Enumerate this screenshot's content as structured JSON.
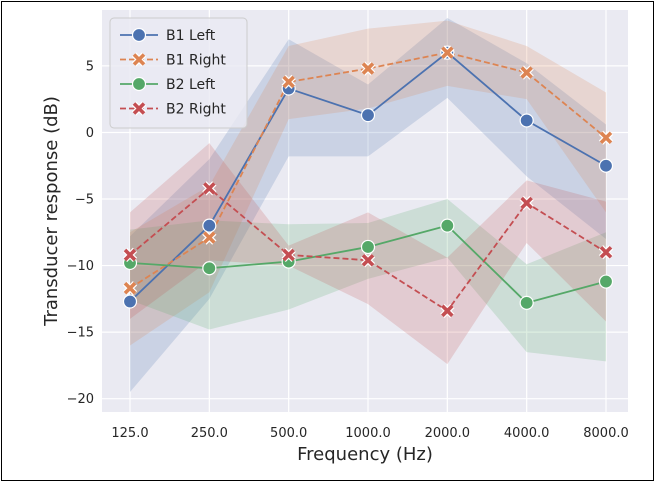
{
  "chart_data": {
    "type": "line",
    "xlabel": "Frequency (Hz)",
    "ylabel": "Transducer response (dB)",
    "categories": [
      "125.0",
      "250.0",
      "500.0",
      "1000.0",
      "2000.0",
      "4000.0",
      "8000.0"
    ],
    "ylim": [
      -21,
      9.2
    ],
    "yticks": [
      5,
      0,
      -5,
      -10,
      -15,
      -20
    ],
    "ytick_labels": [
      "5",
      "0",
      "−5",
      "−10",
      "−15",
      "−20"
    ],
    "grid": true,
    "legend_position": "top-left",
    "series": [
      {
        "name": "B1 Left",
        "color": "#4c72b0",
        "marker": "circle",
        "linestyle": "solid",
        "values": [
          -12.7,
          -7.0,
          3.3,
          1.3,
          6.0,
          0.9,
          -2.5
        ],
        "ci_low": [
          -19.5,
          -12.5,
          -1.8,
          -1.8,
          2.6,
          -3.3,
          -8.0
        ],
        "ci_high": [
          -7.8,
          -2.0,
          7.0,
          3.6,
          8.6,
          5.2,
          0.6
        ]
      },
      {
        "name": "B1 Right",
        "color": "#dd8452",
        "marker": "x",
        "linestyle": "dashed",
        "values": [
          -11.7,
          -7.9,
          3.8,
          4.8,
          6.0,
          4.5,
          -0.4
        ],
        "ci_low": [
          -16.0,
          -12.0,
          1.0,
          1.8,
          3.5,
          2.5,
          -6.0
        ],
        "ci_high": [
          -7.5,
          -4.0,
          6.5,
          7.8,
          8.4,
          6.5,
          3.0
        ]
      },
      {
        "name": "B2 Left",
        "color": "#55a868",
        "marker": "circle",
        "linestyle": "solid",
        "values": [
          -9.8,
          -10.2,
          -9.7,
          -8.6,
          -7.0,
          -12.8,
          -11.2
        ],
        "ci_low": [
          -12.6,
          -14.8,
          -13.3,
          -11.0,
          -9.4,
          -16.5,
          -17.2
        ],
        "ci_high": [
          -7.3,
          -6.6,
          -6.9,
          -6.8,
          -5.0,
          -9.9,
          -7.5
        ]
      },
      {
        "name": "B2 Right",
        "color": "#c44e52",
        "marker": "x",
        "linestyle": "dashed",
        "values": [
          -9.2,
          -4.2,
          -9.2,
          -9.6,
          -13.4,
          -5.3,
          -9.0
        ],
        "ci_low": [
          -14.0,
          -9.6,
          -10.0,
          -12.9,
          -17.4,
          -8.3,
          -14.2
        ],
        "ci_high": [
          -6.0,
          -0.8,
          -8.5,
          -6.0,
          -9.4,
          -3.6,
          -5.2
        ]
      }
    ]
  }
}
